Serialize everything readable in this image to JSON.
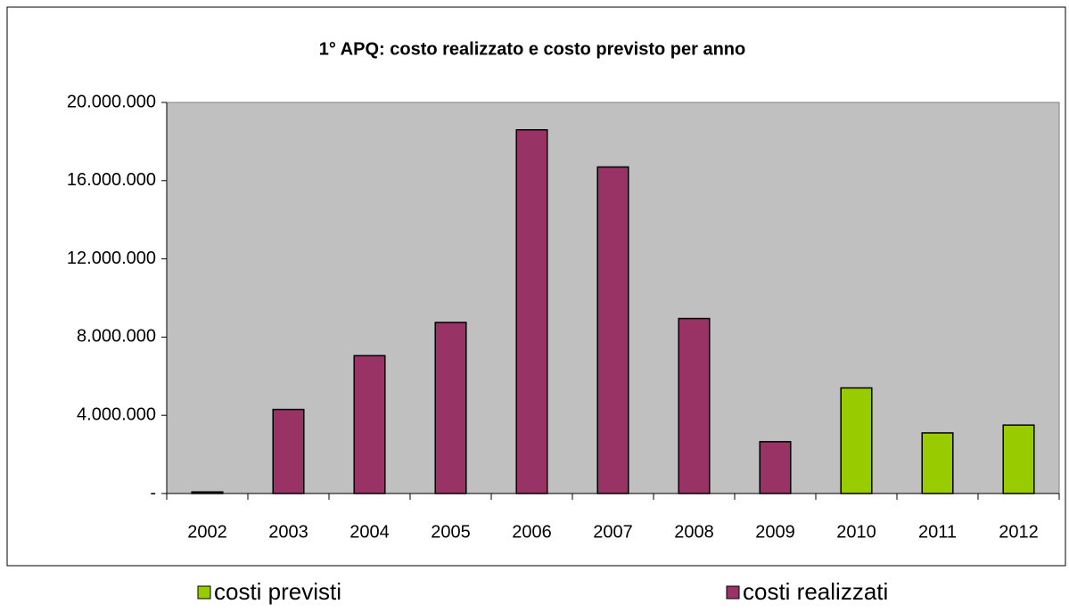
{
  "chart_data": {
    "type": "bar",
    "title": "1° APQ: costo realizzato e costo previsto  per anno",
    "categories": [
      "2002",
      "2003",
      "2004",
      "2005",
      "2006",
      "2007",
      "2008",
      "2009",
      "2010",
      "2011",
      "2012"
    ],
    "series": [
      {
        "name": "costi previsti",
        "color": "#99cc00",
        "values": [
          null,
          null,
          null,
          null,
          null,
          null,
          null,
          null,
          5400000,
          3100000,
          3500000
        ]
      },
      {
        "name": "costi realizzati",
        "color": "#993366",
        "values": [
          80000,
          4300000,
          7050000,
          8750000,
          18600000,
          16700000,
          8950000,
          2650000,
          null,
          null,
          null
        ]
      }
    ],
    "ylim": [
      0,
      20000000
    ],
    "yticks": [
      {
        "value": 0,
        "label": "-"
      },
      {
        "value": 4000000,
        "label": "4.000.000"
      },
      {
        "value": 8000000,
        "label": "8.000.000"
      },
      {
        "value": 12000000,
        "label": "12.000.000"
      },
      {
        "value": 16000000,
        "label": "16.000.000"
      },
      {
        "value": 20000000,
        "label": "20.000.000"
      }
    ],
    "plot_background": "#c0c0c0"
  }
}
